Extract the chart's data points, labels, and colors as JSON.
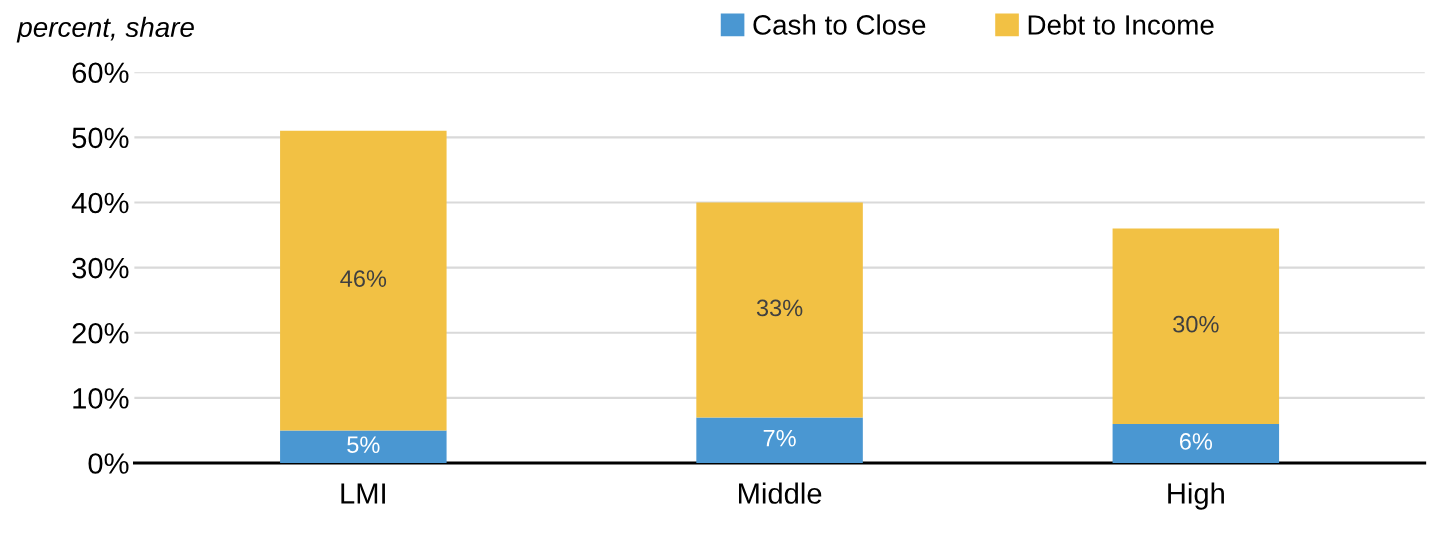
{
  "chart_data": {
    "type": "bar",
    "stacked": true,
    "ylabel": "percent, share",
    "categories": [
      "LMI",
      "Middle",
      "High"
    ],
    "series": [
      {
        "name": "Cash to Close",
        "color": "#4a97d2",
        "values": [
          5,
          7,
          6
        ],
        "value_labels": [
          "5%",
          "7%",
          "6%"
        ]
      },
      {
        "name": "Debt to Income",
        "color": "#f2c144",
        "values": [
          46,
          33,
          30
        ],
        "value_labels": [
          "46%",
          "33%",
          "30%"
        ]
      }
    ],
    "ylim": [
      0,
      60
    ],
    "yticks": [
      {
        "value": 0,
        "label": "0%"
      },
      {
        "value": 10,
        "label": "10%"
      },
      {
        "value": 20,
        "label": "20%"
      },
      {
        "value": 30,
        "label": "30%"
      },
      {
        "value": 40,
        "label": "40%"
      },
      {
        "value": 50,
        "label": "50%"
      },
      {
        "value": 60,
        "label": "60%"
      }
    ],
    "grid": "y",
    "legend": "top"
  }
}
